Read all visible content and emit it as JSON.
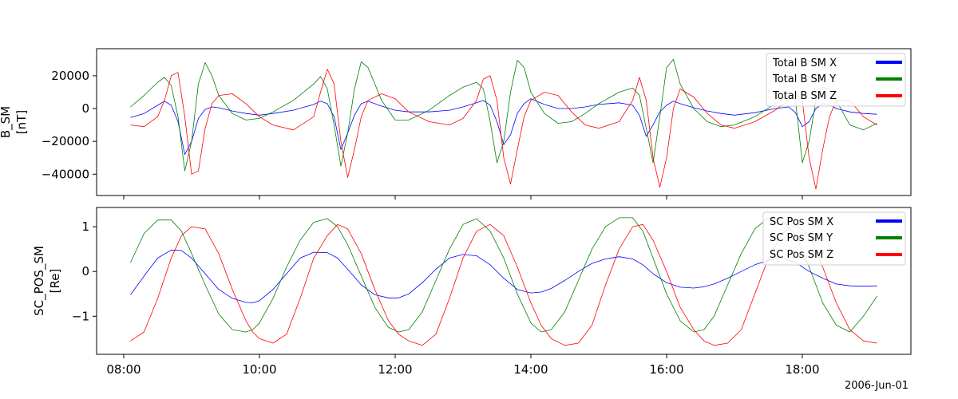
{
  "figure": {
    "date_label": "2006-Jun-01"
  },
  "chart_data": [
    {
      "type": "line",
      "ylabel_line1": "B_SM",
      "ylabel_line2": "[nT]",
      "xlim_hours": [
        7.6,
        19.6
      ],
      "ylim": [
        -53000,
        36500
      ],
      "yticks": [
        20000,
        0,
        -20000,
        -40000
      ],
      "ytick_labels": [
        "20000",
        "0",
        "−20000",
        "−40000"
      ],
      "xticks": [
        8,
        10,
        12,
        14,
        16,
        18
      ],
      "xtick_labels": [
        "08:00",
        "10:00",
        "12:00",
        "14:00",
        "16:00",
        "18:00"
      ],
      "legend_position": "top-right",
      "x": [
        8.1,
        8.3,
        8.5,
        8.6,
        8.7,
        8.8,
        8.9,
        9.0,
        9.1,
        9.2,
        9.3,
        9.4,
        9.6,
        9.8,
        10.0,
        10.2,
        10.5,
        10.8,
        10.9,
        11.0,
        11.1,
        11.2,
        11.3,
        11.4,
        11.5,
        11.6,
        11.8,
        12.0,
        12.2,
        12.5,
        12.8,
        13.0,
        13.2,
        13.3,
        13.4,
        13.5,
        13.6,
        13.7,
        13.8,
        13.9,
        14.0,
        14.2,
        14.4,
        14.6,
        14.8,
        15.0,
        15.3,
        15.5,
        15.6,
        15.7,
        15.8,
        15.9,
        16.0,
        16.1,
        16.2,
        16.4,
        16.6,
        16.8,
        17.0,
        17.3,
        17.6,
        17.8,
        17.9,
        18.0,
        18.1,
        18.2,
        18.3,
        18.4,
        18.5,
        18.7,
        18.9,
        19.1
      ],
      "series": [
        {
          "name": "Total B SM X",
          "color": "#0000ff",
          "values": [
            -5500,
            -3000,
            2000,
            4500,
            2000,
            -8000,
            -28000,
            -20000,
            -6000,
            -500,
            1000,
            500,
            -1500,
            -3000,
            -4000,
            -3000,
            -1000,
            2500,
            4500,
            3000,
            -5000,
            -25000,
            -15000,
            -4000,
            3000,
            4500,
            1500,
            -1000,
            -2000,
            -2000,
            -1000,
            1000,
            3500,
            5000,
            2000,
            -8000,
            -22000,
            -16000,
            -3000,
            3000,
            6000,
            2500,
            0,
            0,
            1000,
            2500,
            3500,
            2000,
            -4000,
            -17000,
            -10000,
            -2000,
            2000,
            4500,
            3000,
            500,
            -1500,
            -3000,
            -4000,
            -2500,
            0,
            1000,
            -2500,
            -11000,
            -8000,
            0,
            3000,
            2500,
            0,
            -2000,
            -3000,
            -3500
          ]
        },
        {
          "name": "Total B SM Y",
          "color": "#008000",
          "values": [
            1000,
            8000,
            16000,
            19000,
            14000,
            -5000,
            -38000,
            -20000,
            15000,
            28000,
            20000,
            8000,
            -3000,
            -7000,
            -6000,
            -2000,
            5000,
            15000,
            19500,
            12000,
            -10000,
            -35000,
            -15000,
            12000,
            28500,
            25000,
            5000,
            -7000,
            -7000,
            -1000,
            8000,
            13000,
            16000,
            12000,
            -8000,
            -33000,
            -20000,
            10000,
            29500,
            25000,
            10000,
            -3000,
            -9000,
            -8000,
            -3000,
            3000,
            10000,
            12500,
            8000,
            -12000,
            -33000,
            -5000,
            25000,
            30000,
            15000,
            0,
            -8000,
            -11000,
            -10000,
            -5000,
            3000,
            8000,
            5000,
            -33000,
            -20000,
            5000,
            13000,
            12000,
            5000,
            -10000,
            -13000,
            -9000
          ]
        },
        {
          "name": "Total B SM Z",
          "color": "#ff0000",
          "values": [
            -10000,
            -11000,
            -5000,
            5000,
            20000,
            22000,
            -5000,
            -40000,
            -38000,
            -12000,
            3000,
            8000,
            9000,
            3000,
            -5000,
            -10000,
            -13000,
            -5000,
            10000,
            24000,
            15000,
            -20000,
            -42000,
            -25000,
            -5000,
            5000,
            9000,
            6000,
            -2000,
            -8000,
            -10000,
            -6000,
            5000,
            18000,
            20000,
            5000,
            -30000,
            -46000,
            -25000,
            -5000,
            5000,
            10000,
            8000,
            -2000,
            -10000,
            -12000,
            -8000,
            5000,
            19000,
            5000,
            -30000,
            -48000,
            -30000,
            0,
            12000,
            7000,
            -3000,
            -10000,
            -12000,
            -8000,
            -1000,
            5000,
            10000,
            5000,
            -30000,
            -49000,
            -25000,
            -5000,
            5000,
            5000,
            -5000,
            -10000
          ]
        }
      ]
    },
    {
      "type": "line",
      "ylabel_line1": "SC_POS_SM",
      "ylabel_line2": "[Re]",
      "xlim_hours": [
        7.6,
        19.6
      ],
      "ylim": [
        -1.85,
        1.43
      ],
      "yticks": [
        1,
        0,
        -1
      ],
      "ytick_labels": [
        "1",
        "0",
        "−1"
      ],
      "xticks": [
        8,
        10,
        12,
        14,
        16,
        18
      ],
      "xtick_labels": [
        "08:00",
        "10:00",
        "12:00",
        "14:00",
        "16:00",
        "18:00"
      ],
      "legend_position": "top-right",
      "x": [
        8.1,
        8.3,
        8.5,
        8.7,
        8.85,
        9.0,
        9.2,
        9.4,
        9.6,
        9.8,
        9.9,
        10.0,
        10.2,
        10.4,
        10.6,
        10.8,
        11.0,
        11.15,
        11.3,
        11.5,
        11.7,
        11.9,
        12.05,
        12.2,
        12.4,
        12.6,
        12.8,
        13.0,
        13.2,
        13.4,
        13.6,
        13.8,
        14.0,
        14.15,
        14.3,
        14.5,
        14.7,
        14.9,
        15.1,
        15.3,
        15.5,
        15.65,
        15.8,
        16.0,
        16.2,
        16.4,
        16.55,
        16.7,
        16.9,
        17.1,
        17.3,
        17.5,
        17.7,
        17.9,
        18.1,
        18.3,
        18.5,
        18.7,
        18.9,
        19.1
      ],
      "series": [
        {
          "name": "SC Pos SM X",
          "color": "#0000ff",
          "values": [
            -0.52,
            -0.1,
            0.3,
            0.48,
            0.47,
            0.3,
            -0.05,
            -0.4,
            -0.6,
            -0.69,
            -0.7,
            -0.65,
            -0.4,
            -0.05,
            0.3,
            0.43,
            0.42,
            0.3,
            0.05,
            -0.3,
            -0.52,
            -0.59,
            -0.59,
            -0.5,
            -0.25,
            0.05,
            0.3,
            0.38,
            0.35,
            0.15,
            -0.15,
            -0.4,
            -0.48,
            -0.46,
            -0.38,
            -0.2,
            0.0,
            0.18,
            0.28,
            0.33,
            0.28,
            0.15,
            -0.05,
            -0.25,
            -0.35,
            -0.37,
            -0.34,
            -0.28,
            -0.15,
            0.0,
            0.15,
            0.25,
            0.3,
            0.2,
            0.0,
            -0.15,
            -0.28,
            -0.32,
            -0.33,
            -0.32
          ]
        },
        {
          "name": "SC Pos SM Y",
          "color": "#008000",
          "values": [
            0.2,
            0.85,
            1.15,
            1.15,
            0.9,
            0.4,
            -0.3,
            -0.95,
            -1.3,
            -1.35,
            -1.3,
            -1.15,
            -0.6,
            0.1,
            0.7,
            1.1,
            1.18,
            1.0,
            0.6,
            -0.1,
            -0.8,
            -1.25,
            -1.35,
            -1.3,
            -0.9,
            -0.2,
            0.5,
            1.05,
            1.18,
            0.9,
            0.3,
            -0.5,
            -1.15,
            -1.35,
            -1.3,
            -0.9,
            -0.2,
            0.5,
            1.0,
            1.2,
            1.2,
            0.9,
            0.3,
            -0.5,
            -1.1,
            -1.35,
            -1.3,
            -1.0,
            -0.3,
            0.4,
            0.95,
            1.2,
            1.15,
            0.8,
            0.1,
            -0.7,
            -1.2,
            -1.35,
            -1.0,
            -0.55
          ]
        },
        {
          "name": "SC Pos SM Z",
          "color": "#ff0000",
          "values": [
            -1.55,
            -1.35,
            -0.6,
            0.3,
            0.8,
            1.0,
            0.95,
            0.4,
            -0.4,
            -1.1,
            -1.35,
            -1.5,
            -1.6,
            -1.4,
            -0.6,
            0.3,
            0.8,
            1.05,
            0.95,
            0.4,
            -0.4,
            -1.1,
            -1.4,
            -1.55,
            -1.65,
            -1.4,
            -0.6,
            0.3,
            0.9,
            1.05,
            0.8,
            0.1,
            -0.7,
            -1.2,
            -1.5,
            -1.65,
            -1.6,
            -1.2,
            -0.3,
            0.5,
            1.0,
            1.05,
            0.7,
            0.0,
            -0.8,
            -1.3,
            -1.55,
            -1.65,
            -1.6,
            -1.3,
            -0.5,
            0.3,
            0.85,
            1.05,
            0.8,
            0.1,
            -0.7,
            -1.3,
            -1.55,
            -1.6
          ]
        }
      ]
    }
  ]
}
